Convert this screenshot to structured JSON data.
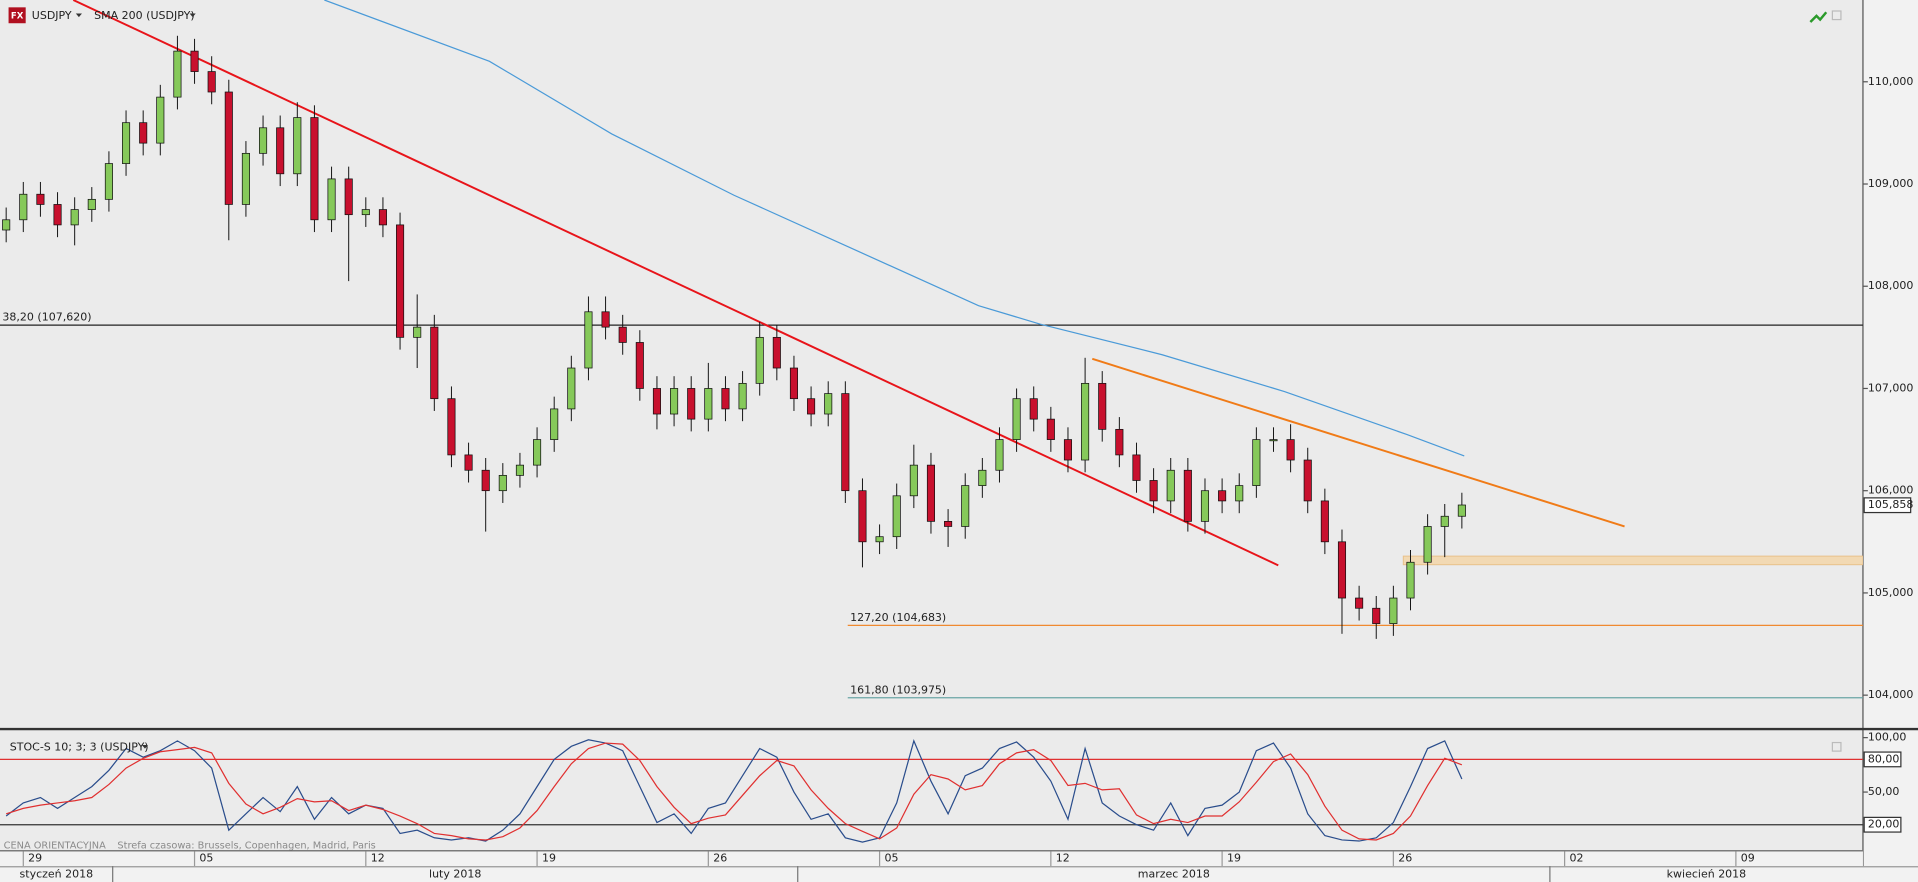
{
  "app": {
    "badge": "FX"
  },
  "footer": {
    "source": "CENA ORIENTACYJNA",
    "timezone": "Strefa czasowa: Brussels, Copenhagen, Madrid, Paris"
  },
  "chart_data": [
    {
      "type": "candlestick",
      "title": "USDJPY",
      "xlim": [
        -0.68,
        53.71
      ],
      "ylim": [
        103.68,
        110.8
      ],
      "yticks": [
        {
          "value": 104,
          "label": "104,000"
        },
        {
          "value": 105,
          "label": "105,000"
        },
        {
          "value": 106,
          "label": "106,000"
        },
        {
          "value": 107,
          "label": "107,000"
        },
        {
          "value": 108,
          "label": "108,000"
        },
        {
          "value": 109,
          "label": "109,000"
        },
        {
          "value": 110,
          "label": "110,000"
        }
      ],
      "up_color": "#86c95a",
      "down_color": "#c8102e",
      "x": [
        -0.5,
        0,
        0.5,
        1,
        1.5,
        2,
        2.5,
        3,
        3.5,
        4,
        4.5,
        5,
        5.5,
        6,
        6.5,
        7,
        7.5,
        8,
        8.5,
        9,
        9.5,
        10,
        10.5,
        11,
        11.5,
        12,
        12.5,
        13,
        13.5,
        14,
        14.5,
        15,
        15.5,
        16,
        16.5,
        17,
        17.5,
        18,
        18.5,
        19,
        19.5,
        20,
        20.5,
        21,
        21.5,
        22,
        22.5,
        23,
        23.5,
        24,
        24.5,
        25,
        25.5,
        26,
        26.5,
        27,
        27.5,
        28,
        28.5,
        29,
        29.5,
        30,
        30.5,
        31,
        31.5,
        32,
        32.5,
        33,
        33.5,
        34,
        34.5,
        35,
        35.5,
        36,
        36.5,
        37,
        37.5,
        38,
        38.5,
        39,
        39.5,
        40,
        40.5,
        41,
        41.5,
        42
      ],
      "open": [
        108.55,
        108.65,
        108.9,
        108.8,
        108.6,
        108.75,
        108.85,
        109.2,
        109.6,
        109.4,
        109.85,
        110.3,
        110.1,
        109.9,
        108.8,
        109.3,
        109.55,
        109.1,
        109.65,
        108.65,
        109.05,
        108.7,
        108.75,
        108.6,
        107.5,
        107.6,
        106.9,
        106.35,
        106.2,
        106.0,
        106.15,
        106.25,
        106.5,
        106.8,
        107.2,
        107.75,
        107.6,
        107.45,
        107.0,
        106.75,
        107.0,
        106.7,
        107.0,
        106.8,
        107.05,
        107.5,
        107.2,
        106.9,
        106.75,
        106.95,
        106.0,
        105.5,
        105.55,
        105.95,
        106.25,
        105.7,
        105.65,
        106.05,
        106.2,
        106.5,
        106.9,
        106.7,
        106.5,
        106.3,
        107.05,
        106.6,
        106.35,
        106.1,
        105.9,
        106.2,
        105.7,
        106.0,
        105.9,
        106.05,
        106.5,
        106.5,
        106.3,
        105.9,
        105.5,
        104.95,
        104.85,
        104.7,
        104.95,
        105.3,
        105.65,
        105.75
      ],
      "high": [
        108.77,
        109.02,
        109.02,
        108.92,
        108.87,
        108.97,
        109.32,
        109.72,
        109.72,
        109.97,
        110.45,
        110.42,
        110.25,
        110.02,
        109.42,
        109.67,
        109.67,
        109.8,
        109.77,
        109.17,
        109.17,
        108.87,
        108.87,
        108.72,
        107.92,
        107.72,
        107.02,
        106.47,
        106.32,
        106.27,
        106.37,
        106.62,
        106.92,
        107.32,
        107.9,
        107.9,
        107.72,
        107.57,
        107.12,
        107.12,
        107.12,
        107.25,
        107.12,
        107.17,
        107.65,
        107.62,
        107.32,
        107.02,
        107.07,
        107.07,
        106.12,
        105.67,
        106.07,
        106.45,
        106.37,
        105.82,
        106.17,
        106.32,
        106.62,
        107.0,
        107.02,
        106.82,
        106.62,
        107.3,
        107.17,
        106.72,
        106.47,
        106.22,
        106.32,
        106.32,
        106.12,
        106.12,
        106.17,
        106.62,
        106.62,
        106.65,
        106.42,
        106.02,
        105.62,
        105.07,
        104.97,
        105.07,
        105.42,
        105.77,
        105.87,
        105.98
      ],
      "low": [
        108.43,
        108.53,
        108.68,
        108.48,
        108.4,
        108.63,
        108.73,
        109.08,
        109.28,
        109.28,
        109.73,
        109.98,
        109.78,
        108.45,
        108.68,
        109.18,
        108.98,
        108.98,
        108.53,
        108.53,
        108.05,
        108.58,
        108.48,
        107.38,
        107.2,
        106.78,
        106.23,
        106.08,
        105.6,
        105.88,
        106.03,
        106.13,
        106.38,
        106.68,
        107.08,
        107.48,
        107.33,
        106.88,
        106.6,
        106.63,
        106.58,
        106.58,
        106.68,
        106.68,
        106.93,
        107.08,
        106.78,
        106.63,
        106.63,
        105.88,
        105.25,
        105.38,
        105.43,
        105.83,
        105.58,
        105.45,
        105.53,
        105.93,
        106.08,
        106.38,
        106.58,
        106.38,
        106.18,
        106.18,
        106.48,
        106.23,
        105.98,
        105.78,
        105.78,
        105.6,
        105.58,
        105.78,
        105.78,
        105.93,
        106.38,
        106.18,
        105.78,
        105.38,
        104.6,
        104.73,
        104.55,
        104.58,
        104.83,
        105.18,
        105.35,
        105.63
      ],
      "close": [
        108.65,
        108.9,
        108.8,
        108.6,
        108.75,
        108.85,
        109.2,
        109.6,
        109.4,
        109.85,
        110.3,
        110.1,
        109.9,
        108.8,
        109.3,
        109.55,
        109.1,
        109.65,
        108.65,
        109.05,
        108.7,
        108.75,
        108.6,
        107.5,
        107.6,
        106.9,
        106.35,
        106.2,
        106.0,
        106.15,
        106.25,
        106.5,
        106.8,
        107.2,
        107.75,
        107.6,
        107.45,
        107.0,
        106.75,
        107.0,
        106.7,
        107.0,
        106.8,
        107.05,
        107.5,
        107.2,
        106.9,
        106.75,
        106.95,
        106.0,
        105.5,
        105.55,
        105.95,
        106.25,
        105.7,
        105.65,
        106.05,
        106.2,
        106.5,
        106.9,
        106.7,
        106.5,
        106.3,
        107.05,
        106.6,
        106.35,
        106.1,
        105.9,
        106.2,
        105.7,
        106.0,
        105.9,
        106.05,
        106.5,
        106.5,
        106.3,
        105.9,
        105.5,
        104.95,
        104.85,
        104.7,
        104.95,
        105.3,
        105.65,
        105.75,
        105.86
      ],
      "overlays": [
        {
          "name": "SMA 200 (USDJPY)",
          "color": "#4a9ad8",
          "x": [
            8.79,
            13.61,
            17.18,
            20.75,
            24.32,
            27.89,
            29.68,
            33.25,
            36.82,
            40.39,
            42.07
          ],
          "values": [
            110.8,
            110.2,
            109.49,
            108.89,
            108.35,
            107.81,
            107.63,
            107.33,
            106.97,
            106.55,
            106.34
          ]
        }
      ],
      "trendlines": [
        {
          "color": "#e8141a",
          "x": [
            1.46,
            36.64
          ],
          "values": [
            110.8,
            105.27
          ]
        },
        {
          "color": "#f07b17",
          "x": [
            31.21,
            46.75
          ],
          "values": [
            107.29,
            105.65
          ]
        }
      ],
      "levels": [
        {
          "value": 107.62,
          "label": "38,20 (107,620)",
          "color": "#222222"
        },
        {
          "value": 104.683,
          "label": "127,20 (104,683)",
          "color": "#f08a30",
          "x_start": 24.07
        },
        {
          "value": 103.975,
          "label": "161,80 (103,975)",
          "color": "#6aa6a6",
          "x_start": 24.07
        }
      ],
      "zone": {
        "low": 105.3,
        "high": 105.36,
        "x_start": 40.29,
        "color": "#f2d9b3"
      },
      "last_price": {
        "value": 105.858,
        "label": "105,858"
      }
    },
    {
      "type": "line",
      "title": "STOC-S 10; 3; 3 (USDJPY)",
      "xlim": [
        -0.68,
        53.71
      ],
      "ylim": [
        -3.4,
        105.6
      ],
      "yticks": [
        {
          "value": 100,
          "label": "100,00"
        },
        {
          "value": 80,
          "label": "80,00"
        },
        {
          "value": 50,
          "label": "50,00"
        },
        {
          "value": 20,
          "label": "20,00"
        }
      ],
      "levels": [
        {
          "value": 80,
          "color": "#e03030"
        },
        {
          "value": 20,
          "color": "#333333"
        }
      ],
      "x": [
        -0.5,
        0,
        0.5,
        1,
        1.5,
        2,
        2.5,
        3,
        3.5,
        4,
        4.5,
        5,
        5.5,
        6,
        6.5,
        7,
        7.5,
        8,
        8.5,
        9,
        9.5,
        10,
        10.5,
        11,
        11.5,
        12,
        12.5,
        13,
        13.5,
        14,
        14.5,
        15,
        15.5,
        16,
        16.5,
        17,
        17.5,
        18,
        18.5,
        19,
        19.5,
        20,
        20.5,
        21,
        21.5,
        22,
        22.5,
        23,
        23.5,
        24,
        24.5,
        25,
        25.5,
        26,
        26.5,
        27,
        27.5,
        28,
        28.5,
        29,
        29.5,
        30,
        30.5,
        31,
        31.5,
        32,
        32.5,
        33,
        33.5,
        34,
        34.5,
        35,
        35.5,
        36,
        36.5,
        37,
        37.5,
        38,
        38.5,
        39,
        39.5,
        40,
        40.5,
        41,
        41.5,
        42
      ],
      "series": [
        {
          "color": "#2a4d8c",
          "values": [
            28,
            40,
            45,
            35,
            45,
            55,
            70,
            90,
            82,
            88,
            97,
            88,
            72,
            15,
            30,
            45,
            32,
            55,
            25,
            45,
            30,
            38,
            35,
            12,
            15,
            8,
            6,
            8,
            5,
            15,
            30,
            55,
            80,
            92,
            98,
            95,
            88,
            55,
            22,
            30,
            12,
            35,
            40,
            65,
            90,
            82,
            50,
            25,
            30,
            8,
            4,
            8,
            40,
            97,
            60,
            30,
            65,
            72,
            90,
            96,
            82,
            60,
            25,
            90,
            40,
            28,
            20,
            15,
            40,
            10,
            35,
            38,
            50,
            88,
            95,
            72,
            30,
            10,
            6,
            5,
            8,
            22,
            55,
            90,
            97,
            62
          ]
        },
        {
          "color": "#e03030",
          "values": [
            30,
            35,
            38,
            40,
            42,
            45,
            57,
            72,
            81,
            87,
            89,
            91,
            86,
            58,
            39,
            30,
            36,
            44,
            41,
            42,
            33,
            38,
            34,
            28,
            21,
            12,
            10,
            7,
            6,
            9,
            17,
            33,
            55,
            76,
            90,
            95,
            94,
            79,
            55,
            36,
            21,
            26,
            29,
            47,
            65,
            79,
            74,
            52,
            35,
            21,
            14,
            7,
            17,
            48,
            66,
            62,
            52,
            56,
            76,
            86,
            89,
            79,
            56,
            58,
            52,
            53,
            29,
            21,
            25,
            22,
            28,
            28,
            41,
            59,
            78,
            85,
            66,
            37,
            15,
            7,
            6,
            12,
            28,
            56,
            81,
            75
          ]
        }
      ],
      "xticks": [
        {
          "value": 0,
          "label": "29"
        },
        {
          "value": 5,
          "label": "05"
        },
        {
          "value": 10,
          "label": "12"
        },
        {
          "value": 15,
          "label": "19"
        },
        {
          "value": 20,
          "label": "26"
        },
        {
          "value": 25,
          "label": "05"
        },
        {
          "value": 30,
          "label": "12"
        },
        {
          "value": 35,
          "label": "19"
        },
        {
          "value": 40,
          "label": "26"
        },
        {
          "value": 45,
          "label": "02"
        },
        {
          "value": 50,
          "label": "09"
        }
      ],
      "months": [
        "styczeń 2018",
        "luty 2018",
        "marzec 2018",
        "kwiecień 2018"
      ],
      "month_breaks": [
        2.61,
        22.61,
        44.57
      ]
    }
  ]
}
